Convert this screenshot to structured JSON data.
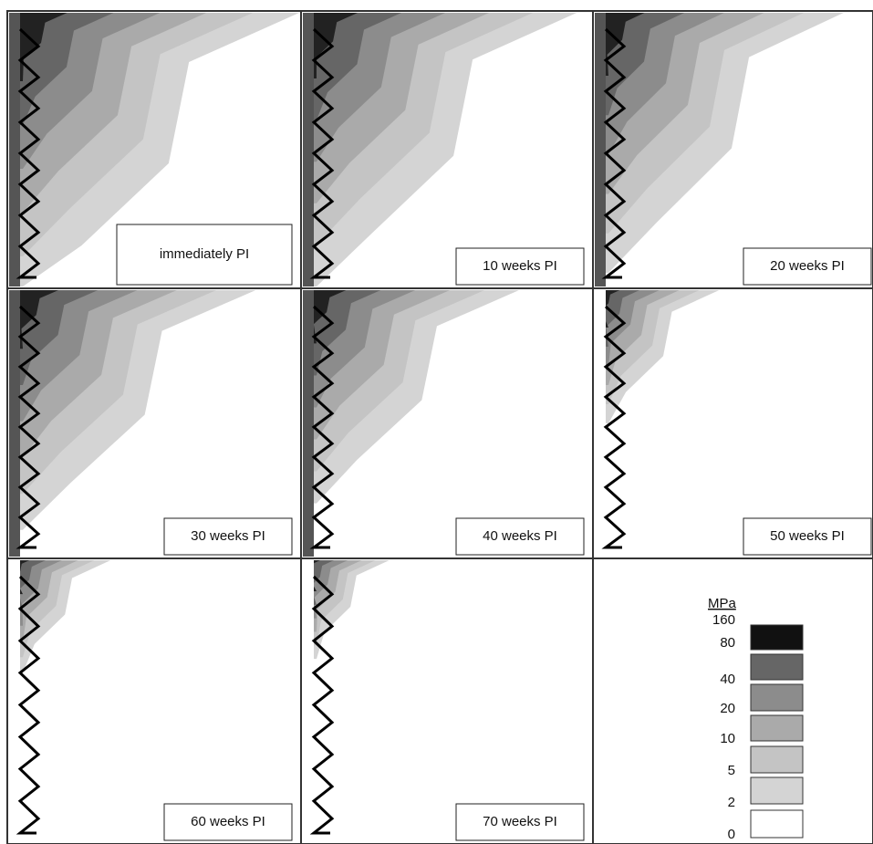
{
  "panels": [
    {
      "label": "immediately PI"
    },
    {
      "label": "10 weeks PI"
    },
    {
      "label": "20 weeks PI"
    },
    {
      "label": "30 weeks PI"
    },
    {
      "label": "40 weeks PI"
    },
    {
      "label": "50 weeks PI"
    },
    {
      "label": "60 weeks PI"
    },
    {
      "label": "70 weeks PI"
    }
  ],
  "legend": {
    "unit": "MPa",
    "levels": [
      "160",
      "80",
      "40",
      "20",
      "10",
      "5",
      "2",
      "0"
    ]
  }
}
